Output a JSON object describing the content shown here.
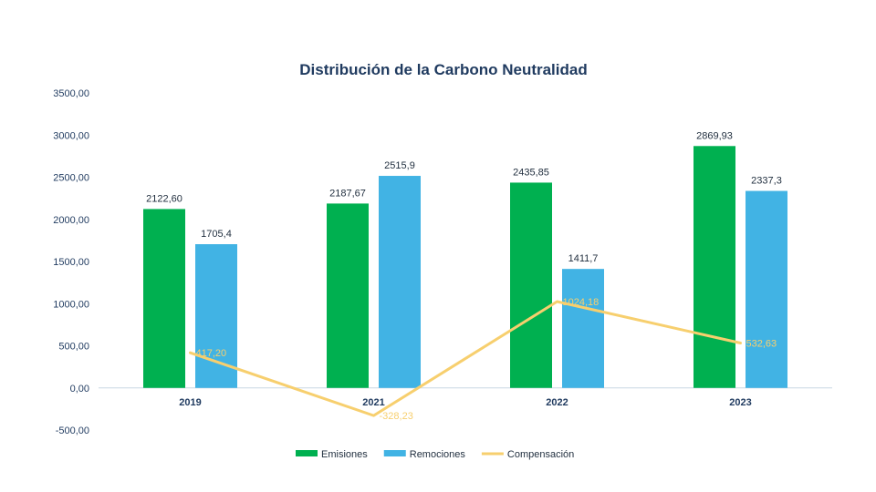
{
  "chart_data": {
    "type": "bar",
    "title": "Distribución de la Carbono Neutralidad",
    "categories": [
      "2019",
      "2021",
      "2022",
      "2023"
    ],
    "ylim": [
      -500,
      3500
    ],
    "yticks": [
      "-500,00",
      "0,00",
      "500,00",
      "1000,00",
      "1500,00",
      "2000,00",
      "2500,00",
      "3000,00",
      "3500,00"
    ],
    "ytick_values": [
      -500,
      0,
      500,
      1000,
      1500,
      2000,
      2500,
      3000,
      3500
    ],
    "grid": false,
    "legend_position": "bottom",
    "series": [
      {
        "name": "Emisiones",
        "type": "bar",
        "color": "#00b050",
        "values": [
          2122.6,
          2187.67,
          2435.85,
          2869.93
        ],
        "labels": [
          "2122,60",
          "2187,67",
          "2435,85",
          "2869,93"
        ]
      },
      {
        "name": "Remociones",
        "type": "bar",
        "color": "#41b3e4",
        "values": [
          1705.4,
          2515.9,
          1411.7,
          2337.3
        ],
        "labels": [
          "1705,4",
          "2515,9",
          "1411,7",
          "2337,3"
        ]
      },
      {
        "name": "Compensación",
        "type": "line",
        "color": "#f7cf6e",
        "values": [
          417.2,
          -328.23,
          1024.18,
          532.63
        ],
        "labels": [
          "417,20",
          "-328,23",
          "1024,18",
          "532,63"
        ]
      }
    ]
  }
}
